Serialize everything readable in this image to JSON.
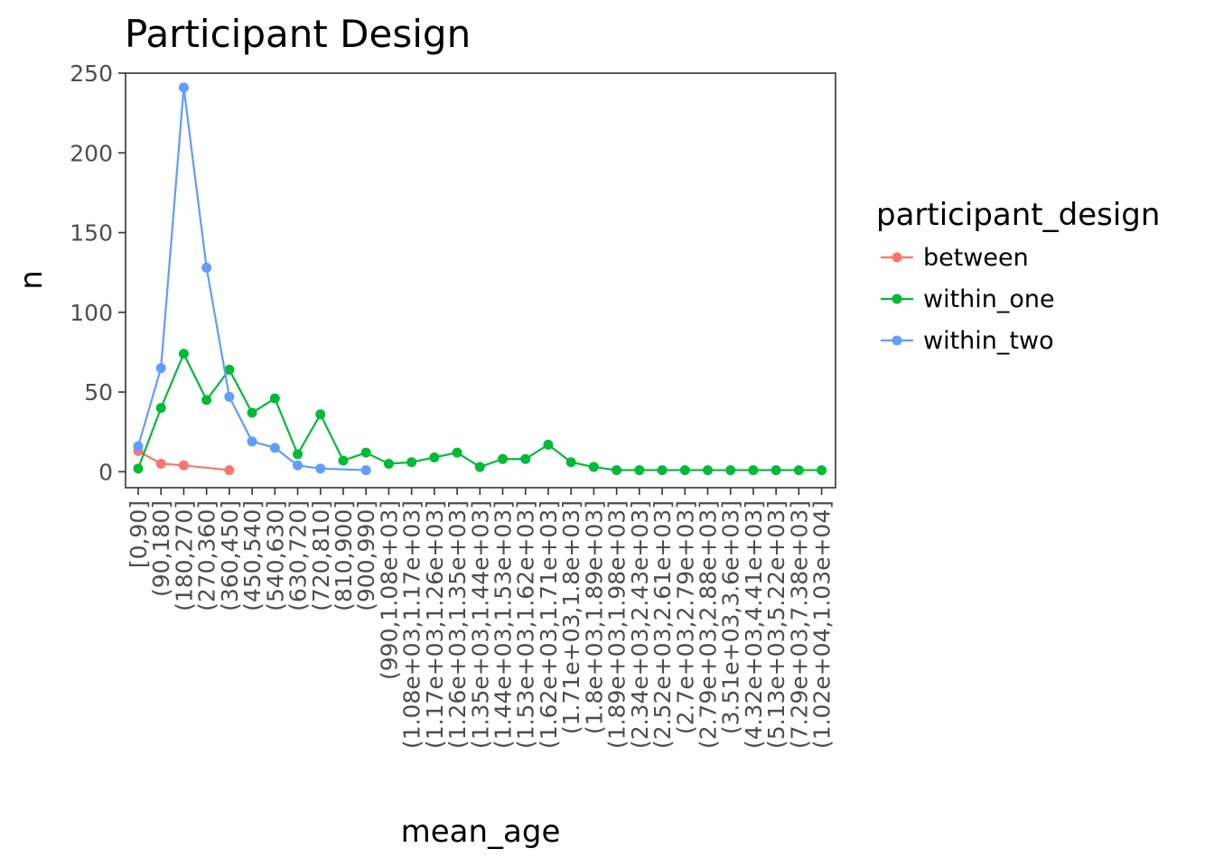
{
  "chart_data": {
    "type": "line",
    "title": "Participant Design",
    "xlabel": "mean_age",
    "ylabel": "n",
    "ylim": [
      -10,
      250
    ],
    "yticks": [
      0,
      50,
      100,
      150,
      200,
      250
    ],
    "categories": [
      "[0,90]",
      "(90,180]",
      "(180,270]",
      "(270,360]",
      "(360,450]",
      "(450,540]",
      "(540,630]",
      "(630,720]",
      "(720,810]",
      "(810,900]",
      "(900,990]",
      "(990,1.08e+03]",
      "(1.08e+03,1.17e+03]",
      "(1.17e+03,1.26e+03]",
      "(1.26e+03,1.35e+03]",
      "(1.35e+03,1.44e+03]",
      "(1.44e+03,1.53e+03]",
      "(1.53e+03,1.62e+03]",
      "(1.62e+03,1.71e+03]",
      "(1.71e+03,1.8e+03]",
      "(1.8e+03,1.89e+03]",
      "(1.89e+03,1.98e+03]",
      "(2.34e+03,2.43e+03]",
      "(2.52e+03,2.61e+03]",
      "(2.7e+03,2.79e+03]",
      "(2.79e+03,2.88e+03]",
      "(3.51e+03,3.6e+03]",
      "(4.32e+03,4.41e+03]",
      "(5.13e+03,5.22e+03]",
      "(7.29e+03,7.38e+03]",
      "(1.02e+04,1.03e+04]"
    ],
    "series": [
      {
        "name": "between",
        "color": "#F8766D",
        "points": [
          [
            0,
            13
          ],
          [
            1,
            5
          ],
          [
            2,
            4
          ],
          [
            4,
            1
          ]
        ]
      },
      {
        "name": "within_one",
        "color": "#00BA38",
        "points": [
          [
            0,
            2
          ],
          [
            1,
            40
          ],
          [
            2,
            74
          ],
          [
            3,
            45
          ],
          [
            4,
            64
          ],
          [
            5,
            37
          ],
          [
            6,
            46
          ],
          [
            7,
            11
          ],
          [
            8,
            36
          ],
          [
            9,
            7
          ],
          [
            10,
            12
          ],
          [
            11,
            5
          ],
          [
            12,
            6
          ],
          [
            13,
            9
          ],
          [
            14,
            12
          ],
          [
            15,
            3
          ],
          [
            16,
            8
          ],
          [
            17,
            8
          ],
          [
            18,
            17
          ],
          [
            19,
            6
          ],
          [
            20,
            3
          ],
          [
            21,
            1
          ],
          [
            22,
            1
          ],
          [
            23,
            1
          ],
          [
            24,
            1
          ],
          [
            25,
            1
          ],
          [
            26,
            1
          ],
          [
            27,
            1
          ],
          [
            28,
            1
          ],
          [
            29,
            1
          ],
          [
            30,
            1
          ]
        ]
      },
      {
        "name": "within_two",
        "color": "#619CFF",
        "points": [
          [
            0,
            16
          ],
          [
            1,
            65
          ],
          [
            2,
            241
          ],
          [
            3,
            128
          ],
          [
            4,
            47
          ],
          [
            5,
            19
          ],
          [
            6,
            15
          ],
          [
            7,
            4
          ],
          [
            8,
            2
          ],
          [
            10,
            1
          ]
        ]
      }
    ],
    "legend": {
      "title": "participant_design",
      "position": "right"
    },
    "grid": false
  }
}
